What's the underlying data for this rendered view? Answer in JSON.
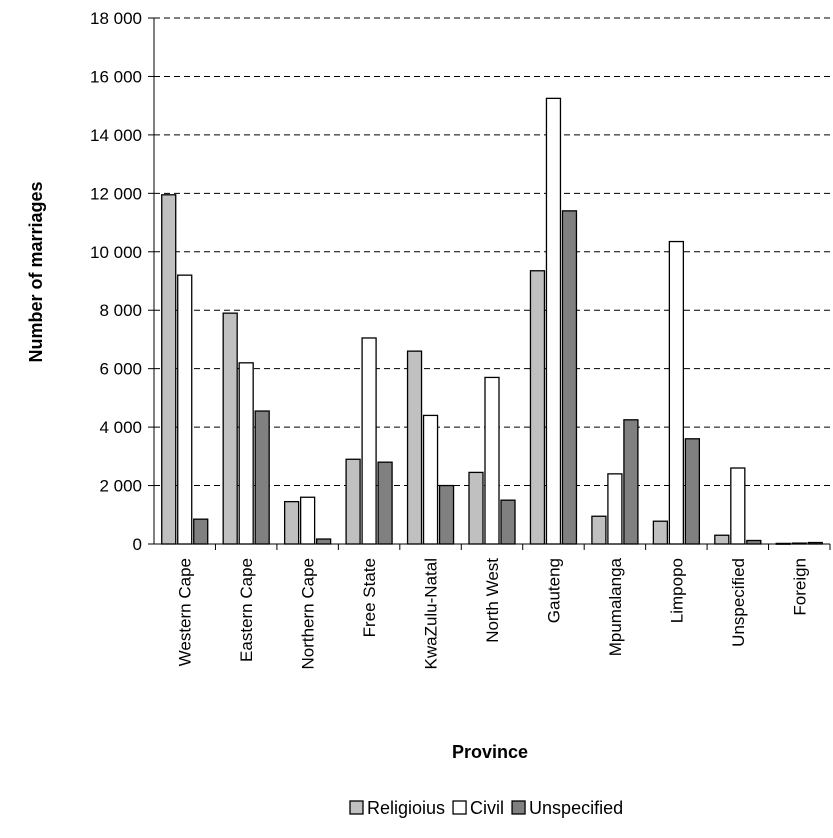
{
  "chart_data": {
    "type": "bar",
    "title": "",
    "xlabel": "Province",
    "ylabel": "Number of marriages",
    "ylim": [
      0,
      18000
    ],
    "yticks": [
      0,
      2000,
      4000,
      6000,
      8000,
      10000,
      12000,
      14000,
      16000,
      18000
    ],
    "ytick_labels": [
      "0",
      "2 000",
      "4 000",
      "6 000",
      "8 000",
      "10 000",
      "12 000",
      "14 000",
      "16 000",
      "18 000"
    ],
    "grid": "horizontal dashed",
    "legend_position": "bottom",
    "categories": [
      "Western  Cape",
      "Eastern Cape",
      "Northern Cape",
      "Free State",
      "KwaZulu-Natal",
      "North West",
      "Gauteng",
      "Mpumalanga",
      "Limpopo",
      "Unspecified",
      "Foreign"
    ],
    "series": [
      {
        "name": "Religioius",
        "color": "#c0c0c0",
        "values": [
          11950,
          7900,
          1450,
          2900,
          6600,
          2450,
          9350,
          950,
          780,
          300,
          20
        ]
      },
      {
        "name": "Civil",
        "color": "#ffffff",
        "values": [
          9200,
          6200,
          1600,
          7050,
          4400,
          5700,
          15250,
          2400,
          10350,
          2600,
          30
        ]
      },
      {
        "name": "Unspecified",
        "color": "#808080",
        "values": [
          850,
          4550,
          170,
          2800,
          2000,
          1500,
          11400,
          4250,
          3600,
          120,
          50
        ]
      }
    ]
  }
}
